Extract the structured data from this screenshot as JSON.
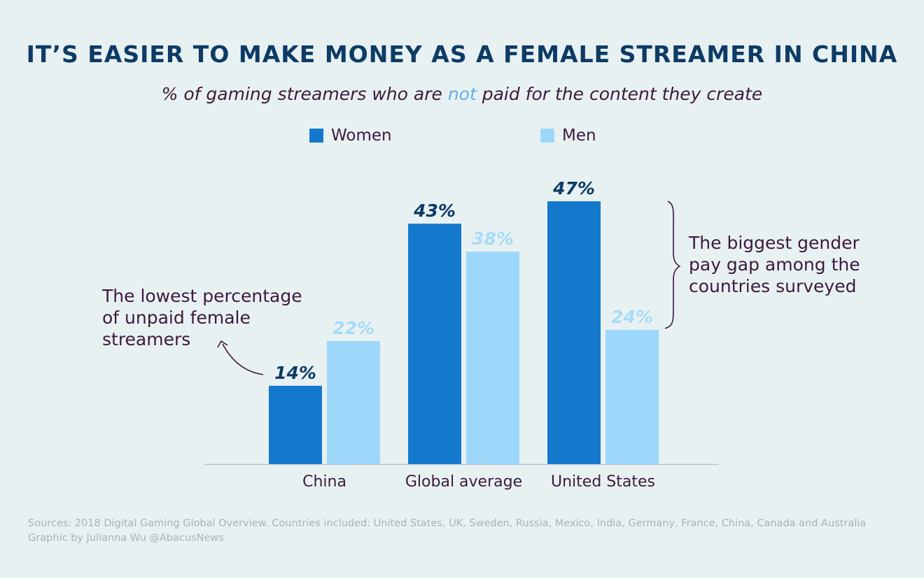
{
  "title": "IT’S EASIER TO MAKE MONEY AS A FEMALE STREAMER IN CHINA",
  "subtitle": {
    "before": "% of gaming streamers who are ",
    "highlight": "not",
    "after": " paid for the content they create"
  },
  "annotations": {
    "left": "The lowest percentage\nof unpaid female\nstreamers",
    "right": "The biggest gender\npay gap among the\ncountries surveyed"
  },
  "footer": {
    "sources": "Sources: 2018 Digital Gaming Global Overview. Countries included: United States, UK, Sweden, Russia, Mexico, India, Germany, France, China, Canada and Australia",
    "credit": "Graphic by Julianna Wu @AbacusNews"
  },
  "colors": {
    "women": "#1479cc",
    "men": "#9dd8fb",
    "women_label": "#0d3b66",
    "men_label": "#a8dbf8",
    "axis": "#b8c6c9"
  },
  "chart_data": {
    "type": "bar",
    "categories": [
      "China",
      "Global average",
      "United States"
    ],
    "series": [
      {
        "name": "Women",
        "values": [
          14,
          43,
          47
        ],
        "labels": [
          "14%",
          "43%",
          "47%"
        ]
      },
      {
        "name": "Men",
        "values": [
          22,
          38,
          24
        ],
        "labels": [
          "22%",
          "38%",
          "24%"
        ]
      }
    ],
    "ylim": [
      0,
      50
    ],
    "grid": false,
    "legend": "top-center"
  }
}
